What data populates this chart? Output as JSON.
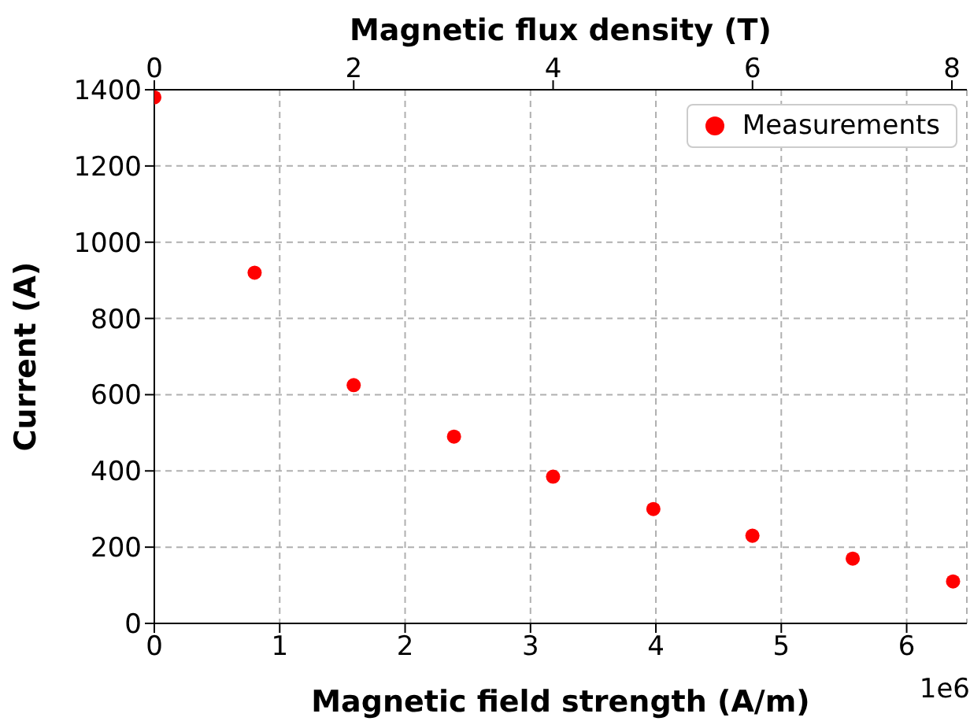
{
  "chart_data": {
    "type": "scatter",
    "xlabel": "Magnetic field strength (A/m)",
    "ylabel": "Current (A)",
    "x2label": "Magnetic flux density (T)",
    "x": [
      0,
      0.8,
      1.59,
      2.39,
      3.18,
      3.98,
      4.77,
      5.57,
      6.37
    ],
    "series": [
      {
        "name": "Measurements",
        "color": "#ff0000",
        "values": [
          1380,
          920,
          625,
          490,
          385,
          300,
          230,
          170,
          110
        ]
      }
    ],
    "xlim": [
      0,
      6.48
    ],
    "xticks": [
      0,
      1,
      2,
      3,
      4,
      5,
      6
    ],
    "x2lim": [
      0,
      8.15
    ],
    "x2ticks": [
      0,
      2,
      4,
      6,
      8
    ],
    "ylim": [
      0,
      1400
    ],
    "yticks": [
      0,
      200,
      400,
      600,
      800,
      1000,
      1200,
      1400
    ],
    "annotations": [
      "1e6"
    ],
    "grid": true,
    "legend": "top right",
    "marker": "circle"
  }
}
